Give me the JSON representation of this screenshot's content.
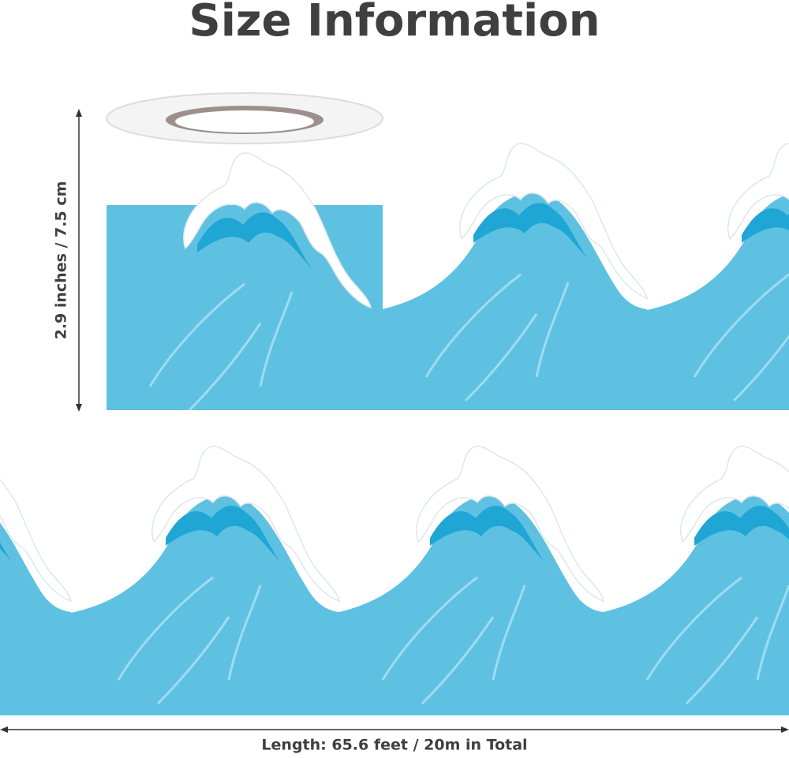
{
  "title": "Size Information",
  "height_label": "2.9 inches / 7.5 cm",
  "length_label": "Length:  65.6 feet / 20m in Total"
}
